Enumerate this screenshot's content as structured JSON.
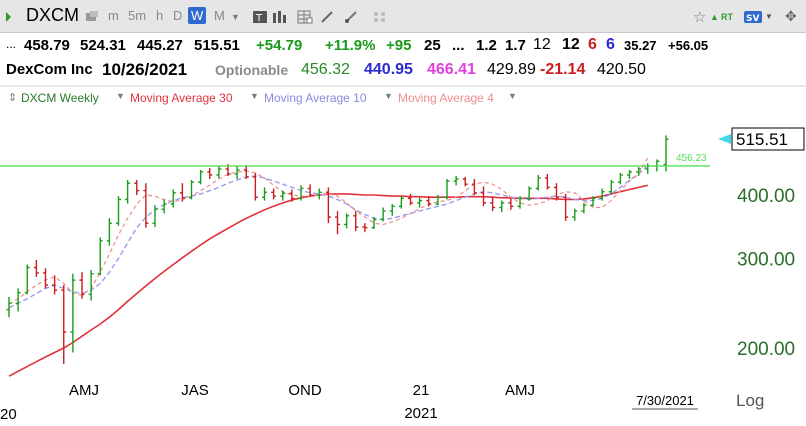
{
  "toolbar": {
    "symbol": "DXCM",
    "timeframes": [
      "m",
      "5m",
      "h",
      "D",
      "W",
      "M"
    ],
    "selected_timeframe": "W",
    "icons": [
      "star-icon",
      "rt-icon",
      "sv-icon",
      "crosshair-icon"
    ]
  },
  "quote_line1": {
    "lead": "...",
    "values": [
      "458.79",
      "524.31",
      "445.27",
      "515.51"
    ],
    "change": "+54.79",
    "change_pct": "+11.9%",
    "v1": "+95",
    "v2": "25",
    "ellipsis": "...",
    "v3": "1.2",
    "v4": "1.7",
    "v5": "12",
    "v6": "12",
    "v7": "6",
    "v8": "6",
    "v9": "35.27",
    "v10": "+56.05"
  },
  "quote_line2": {
    "name": "DexCom Inc",
    "date": "10/26/2021",
    "optionable": "Optionable",
    "p1": "456.32",
    "p2": "440.95",
    "p3": "466.41",
    "p4": "429.89",
    "p5": "-21.14",
    "p6": "420.50"
  },
  "legend": {
    "main": "DXCM Weekly",
    "ma30": "Moving Average 30",
    "ma10": "Moving Average 10",
    "ma4": "Moving Average 4"
  },
  "colors": {
    "up": "#1a9c1a",
    "down": "#c81e1e",
    "ma30": "#e0323c",
    "ma10": "#9a9af0",
    "ma4": "#f08c8c",
    "hline": "#55e055",
    "price_flag": "#40d8e8",
    "axis_text": "#2a6e2a"
  },
  "chart_data": {
    "type": "candlestick",
    "scale": "log",
    "ylim": [
      175,
      560
    ],
    "y_ticks": [
      "200.00",
      "300.00",
      "400.00"
    ],
    "y_tick_values": [
      200,
      300,
      400
    ],
    "x_labels": [
      "AMJ",
      "JAS",
      "OND",
      "21",
      "AMJ"
    ],
    "year_labels": [
      "20",
      "2021"
    ],
    "date_label": "7/30/2021",
    "log_label": "Log",
    "last_price_label": "515.51",
    "last_price": 515.51,
    "hline_value": 456.23,
    "hline_label": "456.23",
    "bars": [
      {
        "o": 238,
        "h": 252,
        "l": 230,
        "c": 245
      },
      {
        "o": 245,
        "h": 262,
        "l": 236,
        "c": 257
      },
      {
        "o": 257,
        "h": 292,
        "l": 255,
        "c": 288
      },
      {
        "o": 288,
        "h": 298,
        "l": 276,
        "c": 281
      },
      {
        "o": 281,
        "h": 287,
        "l": 262,
        "c": 266
      },
      {
        "o": 266,
        "h": 278,
        "l": 255,
        "c": 260
      },
      {
        "o": 260,
        "h": 266,
        "l": 186,
        "c": 215
      },
      {
        "o": 215,
        "h": 280,
        "l": 196,
        "c": 272
      },
      {
        "o": 272,
        "h": 282,
        "l": 250,
        "c": 255
      },
      {
        "o": 255,
        "h": 285,
        "l": 248,
        "c": 280
      },
      {
        "o": 280,
        "h": 330,
        "l": 278,
        "c": 325
      },
      {
        "o": 325,
        "h": 360,
        "l": 318,
        "c": 352
      },
      {
        "o": 352,
        "h": 398,
        "l": 348,
        "c": 392
      },
      {
        "o": 392,
        "h": 428,
        "l": 385,
        "c": 422
      },
      {
        "o": 422,
        "h": 428,
        "l": 400,
        "c": 408
      },
      {
        "o": 408,
        "h": 422,
        "l": 345,
        "c": 352
      },
      {
        "o": 352,
        "h": 382,
        "l": 346,
        "c": 375
      },
      {
        "o": 375,
        "h": 392,
        "l": 368,
        "c": 384
      },
      {
        "o": 384,
        "h": 410,
        "l": 378,
        "c": 404
      },
      {
        "o": 404,
        "h": 422,
        "l": 388,
        "c": 395
      },
      {
        "o": 395,
        "h": 428,
        "l": 392,
        "c": 424
      },
      {
        "o": 424,
        "h": 448,
        "l": 420,
        "c": 444
      },
      {
        "o": 444,
        "h": 452,
        "l": 430,
        "c": 438
      },
      {
        "o": 438,
        "h": 455,
        "l": 432,
        "c": 450
      },
      {
        "o": 450,
        "h": 460,
        "l": 436,
        "c": 440
      },
      {
        "o": 440,
        "h": 455,
        "l": 430,
        "c": 448
      },
      {
        "o": 448,
        "h": 458,
        "l": 430,
        "c": 434
      },
      {
        "o": 434,
        "h": 442,
        "l": 390,
        "c": 396
      },
      {
        "o": 396,
        "h": 414,
        "l": 390,
        "c": 405
      },
      {
        "o": 405,
        "h": 412,
        "l": 392,
        "c": 398
      },
      {
        "o": 398,
        "h": 408,
        "l": 390,
        "c": 403
      },
      {
        "o": 403,
        "h": 410,
        "l": 388,
        "c": 394
      },
      {
        "o": 394,
        "h": 418,
        "l": 390,
        "c": 412
      },
      {
        "o": 412,
        "h": 420,
        "l": 396,
        "c": 400
      },
      {
        "o": 400,
        "h": 412,
        "l": 392,
        "c": 405
      },
      {
        "o": 405,
        "h": 414,
        "l": 352,
        "c": 362
      },
      {
        "o": 362,
        "h": 372,
        "l": 335,
        "c": 350
      },
      {
        "o": 350,
        "h": 368,
        "l": 344,
        "c": 364
      },
      {
        "o": 364,
        "h": 372,
        "l": 340,
        "c": 346
      },
      {
        "o": 346,
        "h": 352,
        "l": 338,
        "c": 345
      },
      {
        "o": 345,
        "h": 362,
        "l": 343,
        "c": 358
      },
      {
        "o": 358,
        "h": 378,
        "l": 355,
        "c": 372
      },
      {
        "o": 372,
        "h": 384,
        "l": 364,
        "c": 380
      },
      {
        "o": 380,
        "h": 398,
        "l": 376,
        "c": 394
      },
      {
        "o": 394,
        "h": 402,
        "l": 382,
        "c": 386
      },
      {
        "o": 386,
        "h": 395,
        "l": 378,
        "c": 390
      },
      {
        "o": 390,
        "h": 398,
        "l": 380,
        "c": 384
      },
      {
        "o": 384,
        "h": 400,
        "l": 382,
        "c": 396
      },
      {
        "o": 396,
        "h": 430,
        "l": 392,
        "c": 426
      },
      {
        "o": 426,
        "h": 436,
        "l": 418,
        "c": 430
      },
      {
        "o": 430,
        "h": 434,
        "l": 416,
        "c": 420
      },
      {
        "o": 420,
        "h": 430,
        "l": 400,
        "c": 404
      },
      {
        "o": 404,
        "h": 416,
        "l": 380,
        "c": 386
      },
      {
        "o": 386,
        "h": 396,
        "l": 372,
        "c": 378
      },
      {
        "o": 378,
        "h": 390,
        "l": 370,
        "c": 386
      },
      {
        "o": 386,
        "h": 394,
        "l": 374,
        "c": 380
      },
      {
        "o": 380,
        "h": 398,
        "l": 376,
        "c": 394
      },
      {
        "o": 394,
        "h": 416,
        "l": 390,
        "c": 412
      },
      {
        "o": 412,
        "h": 438,
        "l": 408,
        "c": 432
      },
      {
        "o": 432,
        "h": 440,
        "l": 410,
        "c": 414
      },
      {
        "o": 414,
        "h": 422,
        "l": 390,
        "c": 396
      },
      {
        "o": 396,
        "h": 402,
        "l": 356,
        "c": 362
      },
      {
        "o": 362,
        "h": 376,
        "l": 356,
        "c": 372
      },
      {
        "o": 372,
        "h": 386,
        "l": 368,
        "c": 382
      },
      {
        "o": 382,
        "h": 398,
        "l": 380,
        "c": 394
      },
      {
        "o": 394,
        "h": 412,
        "l": 390,
        "c": 406
      },
      {
        "o": 406,
        "h": 428,
        "l": 402,
        "c": 424
      },
      {
        "o": 424,
        "h": 442,
        "l": 420,
        "c": 438
      },
      {
        "o": 438,
        "h": 448,
        "l": 430,
        "c": 444
      },
      {
        "o": 444,
        "h": 454,
        "l": 436,
        "c": 450
      },
      {
        "o": 450,
        "h": 462,
        "l": 440,
        "c": 456
      },
      {
        "o": 456,
        "h": 470,
        "l": 445,
        "c": 466
      },
      {
        "o": 459,
        "h": 524,
        "l": 445,
        "c": 515
      }
    ],
    "ma30": [
      176,
      180,
      184,
      188,
      192,
      196,
      200,
      205,
      211,
      217,
      223,
      230,
      238,
      247,
      256,
      265,
      274,
      283,
      292,
      301,
      310,
      319,
      328,
      336,
      344,
      352,
      360,
      367,
      374,
      380,
      386,
      391,
      395,
      398,
      400,
      402,
      402,
      402,
      401,
      400,
      400,
      399,
      398,
      398,
      397,
      397,
      396,
      396,
      396,
      396,
      397,
      397,
      397,
      396,
      395,
      395,
      394,
      394,
      394,
      394,
      393,
      392,
      392,
      393,
      395,
      398,
      402,
      406,
      410,
      414,
      418
    ],
    "ma10": [
      240,
      245,
      250,
      256,
      262,
      266,
      262,
      258,
      256,
      260,
      268,
      282,
      300,
      322,
      345,
      362,
      374,
      383,
      390,
      395,
      398,
      402,
      408,
      414,
      422,
      428,
      434,
      436,
      432,
      426,
      420,
      414,
      408,
      404,
      402,
      398,
      392,
      384,
      374,
      366,
      360,
      358,
      360,
      364,
      368,
      372,
      376,
      380,
      384,
      390,
      396,
      402,
      406,
      404,
      400,
      396,
      394,
      392,
      394,
      396,
      398,
      396,
      392,
      390,
      390,
      394,
      402,
      414,
      428,
      440,
      458
    ],
    "ma4": [
      244,
      250,
      258,
      266,
      272,
      276,
      268,
      256,
      254,
      262,
      282,
      306,
      334,
      360,
      384,
      400,
      398,
      392,
      388,
      392,
      398,
      408,
      418,
      430,
      440,
      444,
      446,
      442,
      432,
      418,
      406,
      400,
      398,
      398,
      400,
      402,
      398,
      386,
      372,
      362,
      352,
      350,
      354,
      360,
      368,
      376,
      384,
      388,
      390,
      396,
      408,
      420,
      424,
      420,
      410,
      396,
      386,
      382,
      384,
      390,
      400,
      406,
      404,
      390,
      378,
      378,
      390,
      408,
      426,
      440,
      474
    ]
  }
}
